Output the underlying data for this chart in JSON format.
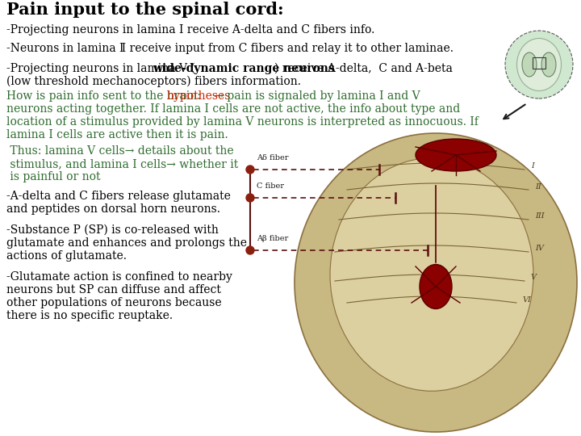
{
  "title": "Pain input to the spinal cord:",
  "bg": "#ffffff",
  "title_fontsize": 15,
  "body_fontsize": 10,
  "green_color": "#2e6b2e",
  "red_color": "#cc2200",
  "black_color": "#000000",
  "line1": "-Projecting neurons in lamina I receive A-delta and C fibers info.",
  "line2": "-Neurons in lamina Ⅱ receive input from C fibers and relay it to other laminae.",
  "line3a": "-Projecting neurons in lamina V (",
  "line3b": "wide-dynamic range neurons",
  "line3c": ") receive A-delta,  C and A-beta",
  "line3d": "(low threshold mechanoceptors) fibers information.",
  "green_block1": [
    [
      "green",
      "How is pain info sent to the brain: "
    ],
    [
      "red",
      "hypotheses"
    ],
    [
      "green",
      " → pain is signaled by lamina I and V"
    ]
  ],
  "green_block2": [
    "neurons acting together. If lamina I cells are not active, the info about type and",
    "location of a stimulus provided by lamina V neurons is interpreted as innocuous. If",
    "lamina I cells are active then it is pain."
  ],
  "green_block3": [
    " Thus: lamina V cells→ details about the",
    " stimulus, and lamina I cells→ whether it",
    " is painful or not"
  ],
  "black_block1": [
    "-A-delta and C fibers release glutamate",
    "and peptides on dorsal horn neurons."
  ],
  "black_block2": [
    "-Substance P (SP) is co-released with",
    "glutamate and enhances and prolongs the",
    "actions of glutamate."
  ],
  "black_block3": [
    "-Glutamate action is confined to nearby",
    "neurons but SP can diffuse and affect",
    "other populations of neurons because",
    "there is no specific reuptake."
  ],
  "diagram": {
    "spine_color": "#c8b882",
    "spine_edge": "#8b7040",
    "red_neuron": "#8b0000",
    "fiber_color": "#5a1010",
    "laminae_color": "#7a6535",
    "mini_color": "#b8d4a8"
  }
}
